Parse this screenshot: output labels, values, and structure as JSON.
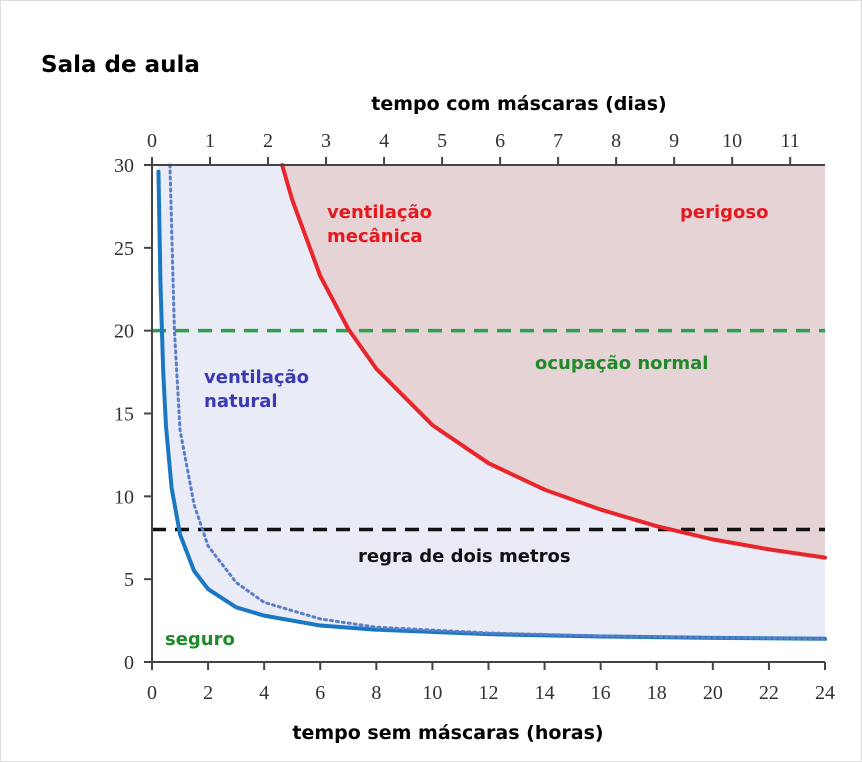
{
  "chart_data": {
    "type": "line",
    "title": "Sala de aula",
    "xlabel": "tempo sem máscaras (horas)",
    "x2label": "tempo com máscaras (dias)",
    "xlim": [
      0,
      24
    ],
    "xticks": [
      0,
      2,
      4,
      6,
      8,
      10,
      12,
      14,
      16,
      18,
      20,
      22,
      24
    ],
    "x2lim": [
      0,
      11.6
    ],
    "x2ticks": [
      0,
      1,
      2,
      3,
      4,
      5,
      6,
      7,
      8,
      9,
      10,
      11
    ],
    "ylim": [
      0,
      30
    ],
    "yticks": [
      0,
      5,
      10,
      15,
      20,
      25,
      30
    ],
    "series": [
      {
        "color": "#1a78c2",
        "style": "solid",
        "fill": "#e9ebf6",
        "x": [
          0.23,
          0.3,
          0.4,
          0.5,
          0.7,
          1,
          1.5,
          2,
          3,
          4,
          6,
          8,
          12,
          16,
          20,
          24
        ],
        "values": [
          29.6,
          22.96,
          17.5,
          14.2,
          10.5,
          7.7,
          5.5,
          4.4,
          3.3,
          2.8,
          2.2,
          1.95,
          1.68,
          1.54,
          1.46,
          1.4
        ]
      },
      {
        "color": "#5a7ec8",
        "style": "dotted",
        "x": [
          0.64,
          0.8,
          1,
          1.5,
          2,
          3,
          4,
          6,
          8,
          12,
          16,
          20,
          24
        ],
        "values": [
          30,
          20,
          14,
          9.5,
          7,
          4.8,
          3.6,
          2.6,
          2.1,
          1.75,
          1.57,
          1.47,
          1.4
        ]
      },
      {
        "color": "#e8252b",
        "style": "solid",
        "fill": "#e6d3d5",
        "x": [
          4.64,
          5,
          6,
          7,
          8,
          10,
          12,
          14,
          16,
          18,
          20,
          22,
          24
        ],
        "values": [
          30,
          27.9,
          23.3,
          20.1,
          17.7,
          14.3,
          12.0,
          10.4,
          9.2,
          8.2,
          7.4,
          6.8,
          6.3
        ]
      }
    ],
    "hlines": [
      {
        "value": 20,
        "color": "#2e9e4f"
      },
      {
        "value": 8,
        "color": "#111111"
      }
    ],
    "annotations": [
      {
        "lines": [
          "ventilação",
          "mecânica"
        ],
        "color": "#e3191f"
      },
      {
        "lines": [
          "perigoso"
        ],
        "color": "#e3191f"
      },
      {
        "lines": [
          "ocupação normal"
        ],
        "color": "#1e8a2a"
      },
      {
        "lines": [
          "ventilação",
          "natural"
        ],
        "color": "#3a3ab8"
      },
      {
        "lines": [
          "regra de dois metros"
        ],
        "color": "#111111"
      },
      {
        "lines": [
          "seguro"
        ],
        "color": "#1e8a2a"
      }
    ]
  }
}
